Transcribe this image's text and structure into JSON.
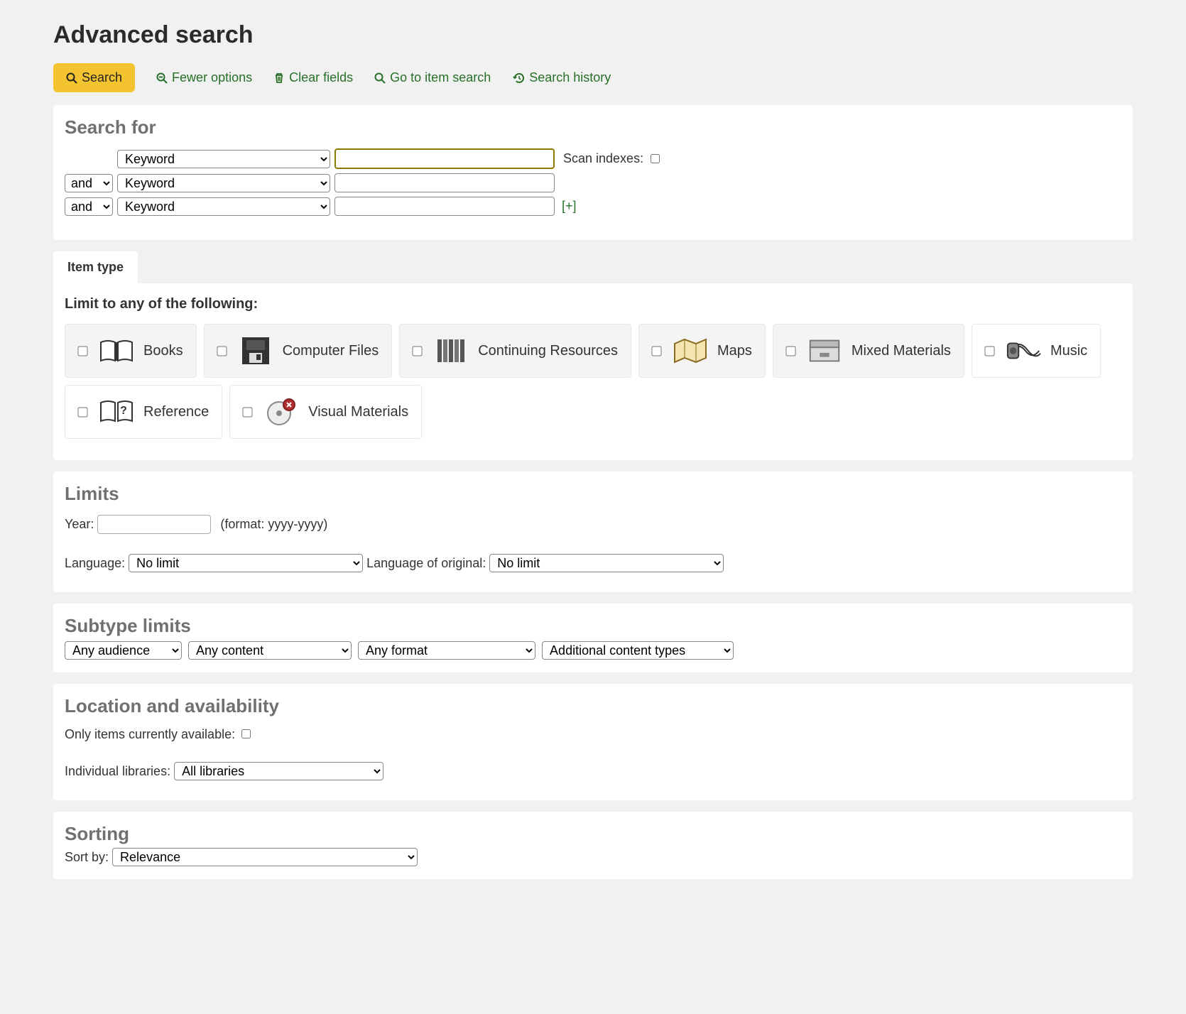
{
  "colors": {
    "page_bg": "#f1f1f1",
    "panel_bg": "#ffffff",
    "accent_yellow": "#f4c430",
    "link_green": "#277028",
    "heading_gray": "#707070",
    "text": "#333333",
    "border": "#888888",
    "shaded_cell": "#f4f4f4",
    "focus_border": "#8a7a00"
  },
  "page_title": "Advanced search",
  "toolbar": {
    "search": "Search",
    "fewer_options": "Fewer options",
    "clear_fields": "Clear fields",
    "go_to_item_search": "Go to item search",
    "search_history": "Search history"
  },
  "search_for": {
    "heading": "Search for",
    "rows": [
      {
        "op": null,
        "index": "Keyword",
        "term": ""
      },
      {
        "op": "and",
        "index": "Keyword",
        "term": ""
      },
      {
        "op": "and",
        "index": "Keyword",
        "term": ""
      }
    ],
    "scan_indexes_label": "Scan indexes:",
    "scan_indexes_checked": false,
    "add_row": "[+]"
  },
  "item_type": {
    "tab_label": "Item type",
    "heading": "Limit to any of the following:",
    "items": [
      {
        "label": "Books",
        "shaded": true
      },
      {
        "label": "Computer Files",
        "shaded": true
      },
      {
        "label": "Continuing Resources",
        "shaded": true
      },
      {
        "label": "Maps",
        "shaded": true
      },
      {
        "label": "Mixed Materials",
        "shaded": true
      },
      {
        "label": "Music",
        "shaded": false
      },
      {
        "label": "Reference",
        "shaded": false
      },
      {
        "label": "Visual Materials",
        "shaded": false
      }
    ]
  },
  "limits": {
    "heading": "Limits",
    "year_label": "Year:",
    "year_value": "",
    "year_hint": "(format: yyyy-yyyy)",
    "language_label": "Language:",
    "language_value": "No limit",
    "language_orig_label": "Language of original:",
    "language_orig_value": "No limit"
  },
  "subtype": {
    "heading": "Subtype limits",
    "audience": "Any audience",
    "content": "Any content",
    "format": "Any format",
    "additional": "Additional content types"
  },
  "location": {
    "heading": "Location and availability",
    "only_available_label": "Only items currently available:",
    "only_available_checked": false,
    "individual_libraries_label": "Individual libraries:",
    "individual_libraries_value": "All libraries"
  },
  "sorting": {
    "heading": "Sorting",
    "sort_by_label": "Sort by:",
    "sort_by_value": "Relevance"
  }
}
